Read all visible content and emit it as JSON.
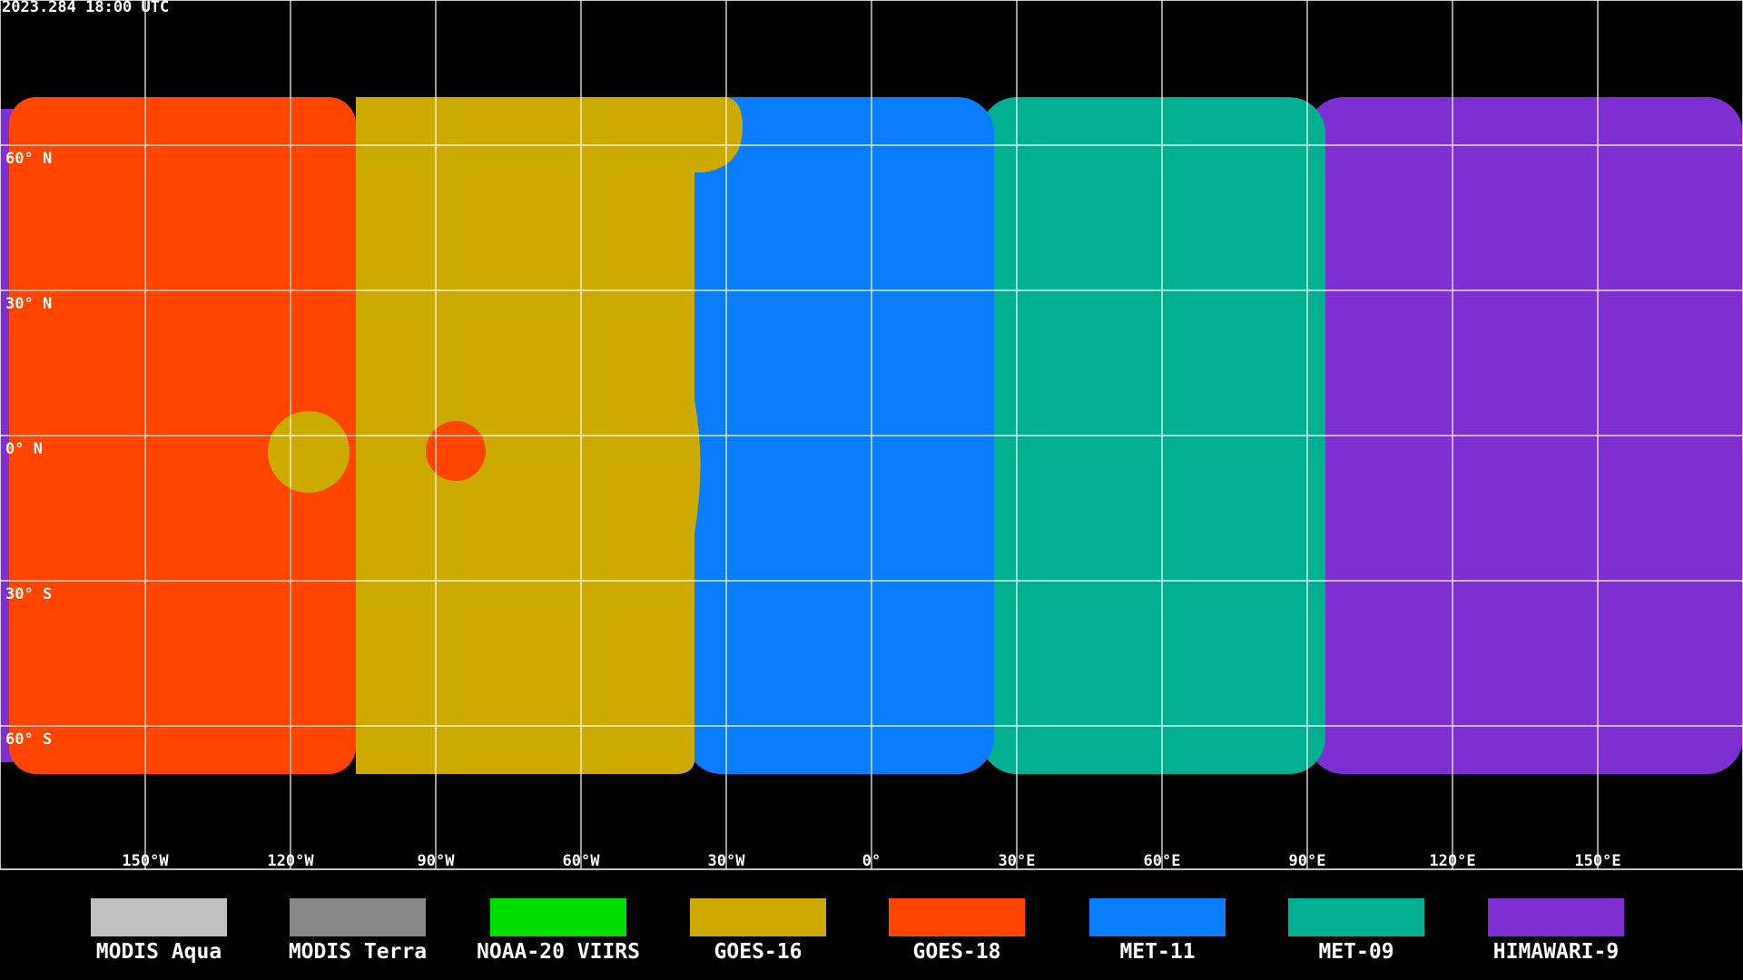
{
  "header": {
    "timestamp": "2023.284 18:00 UTC"
  },
  "map": {
    "lat_labels": [
      {
        "value": 60,
        "label": "60° N"
      },
      {
        "value": 30,
        "label": "30° N"
      },
      {
        "value": 0,
        "label": "0° N"
      },
      {
        "value": -30,
        "label": "30° S"
      },
      {
        "value": -60,
        "label": "60° S"
      }
    ],
    "lon_labels": [
      {
        "value": -150,
        "label": "150°W"
      },
      {
        "value": -120,
        "label": "120°W"
      },
      {
        "value": -90,
        "label": "90°W"
      },
      {
        "value": -60,
        "label": "60°W"
      },
      {
        "value": -30,
        "label": "30°W"
      },
      {
        "value": 0,
        "label": "0°"
      },
      {
        "value": 30,
        "label": "30°E"
      },
      {
        "value": 60,
        "label": "60°E"
      },
      {
        "value": 90,
        "label": "90°E"
      },
      {
        "value": 120,
        "label": "120°E"
      },
      {
        "value": 150,
        "label": "150°E"
      }
    ]
  },
  "legend": {
    "items": [
      {
        "label": "MODIS Aqua",
        "color": "#c0c0c0"
      },
      {
        "label": "MODIS Terra",
        "color": "#888888"
      },
      {
        "label": "NOAA-20 VIIRS",
        "color": "#00dd00"
      },
      {
        "label": "GOES-16",
        "color": "#ccaa00"
      },
      {
        "label": "GOES-18",
        "color": "#ff4500"
      },
      {
        "label": "MET-11",
        "color": "#0a7cff"
      },
      {
        "label": "MET-09",
        "color": "#00b090"
      },
      {
        "label": "HIMAWARI-9",
        "color": "#7d2fd2"
      }
    ]
  }
}
